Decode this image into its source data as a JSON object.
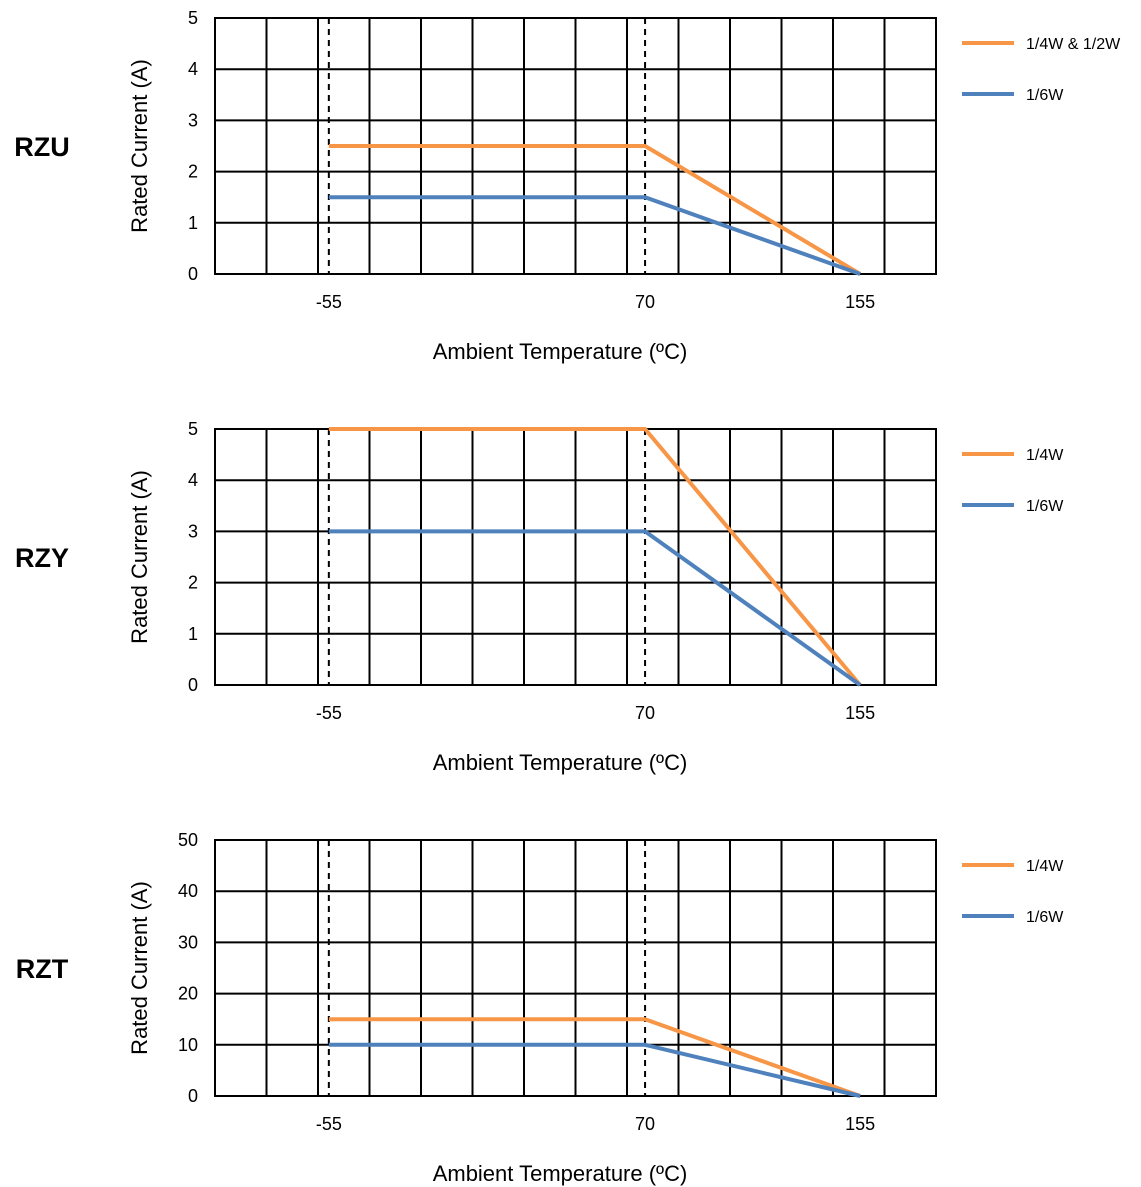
{
  "chart_data": [
    {
      "type": "line",
      "panel_label": "RZU",
      "xlabel": "Ambient  Temperature  (ºC)",
      "ylabel": "Rated Current (A)",
      "ylim": [
        0,
        5
      ],
      "yticks": [
        "0",
        "1",
        "2",
        "3",
        "4",
        "5"
      ],
      "xticks": [
        {
          "value": -55,
          "label": "-55"
        },
        {
          "value": 70,
          "label": "70"
        },
        {
          "value": 155,
          "label": "155"
        }
      ],
      "xlim": [
        -100,
        185
      ],
      "grid": true,
      "reference_lines_x": [
        -55,
        70
      ],
      "legend_position": "right",
      "series": [
        {
          "name": "1/4W & 1/2W",
          "color": "#F79646",
          "x": [
            -55,
            70,
            155
          ],
          "y": [
            2.5,
            2.5,
            0
          ]
        },
        {
          "name": "1/6W",
          "color": "#4F81BD",
          "x": [
            -55,
            70,
            155
          ],
          "y": [
            1.5,
            1.5,
            0
          ]
        }
      ]
    },
    {
      "type": "line",
      "panel_label": "RZY",
      "xlabel": "Ambient  Temperature  (ºC)",
      "ylabel": "Rated Current (A)",
      "ylim": [
        0,
        5
      ],
      "yticks": [
        "0",
        "1",
        "2",
        "3",
        "4",
        "5"
      ],
      "xticks": [
        {
          "value": -55,
          "label": "-55"
        },
        {
          "value": 70,
          "label": "70"
        },
        {
          "value": 155,
          "label": "155"
        }
      ],
      "xlim": [
        -100,
        185
      ],
      "grid": true,
      "reference_lines_x": [
        -55,
        70
      ],
      "legend_position": "right",
      "series": [
        {
          "name": "1/4W",
          "color": "#F79646",
          "x": [
            -55,
            70,
            155
          ],
          "y": [
            5,
            5,
            0
          ]
        },
        {
          "name": "1/6W",
          "color": "#4F81BD",
          "x": [
            -55,
            70,
            155
          ],
          "y": [
            3,
            3,
            0
          ]
        }
      ]
    },
    {
      "type": "line",
      "panel_label": "RZT",
      "xlabel": "Ambient  Temperature  (ºC)",
      "ylabel": "Rated Current (A)",
      "ylim": [
        0,
        50
      ],
      "yticks": [
        "0",
        "10",
        "20",
        "30",
        "40",
        "50"
      ],
      "xticks": [
        {
          "value": -55,
          "label": "-55"
        },
        {
          "value": 70,
          "label": "70"
        },
        {
          "value": 155,
          "label": "155"
        }
      ],
      "xlim": [
        -100,
        185
      ],
      "grid": true,
      "reference_lines_x": [
        -55,
        70
      ],
      "legend_position": "right",
      "series": [
        {
          "name": "1/4W",
          "color": "#F79646",
          "x": [
            -55,
            70,
            155
          ],
          "y": [
            15,
            15,
            0
          ]
        },
        {
          "name": "1/6W",
          "color": "#4F81BD",
          "x": [
            -55,
            70,
            155
          ],
          "y": [
            10,
            10,
            0
          ]
        }
      ]
    }
  ]
}
